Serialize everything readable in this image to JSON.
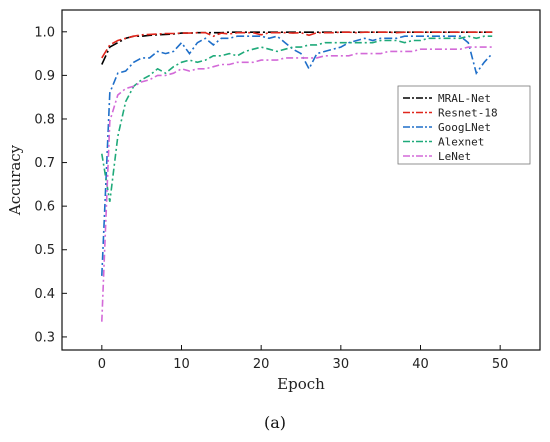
{
  "chart_data": {
    "type": "line",
    "xlabel": "Epoch",
    "ylabel": "Accuracy",
    "panel_label": "(a)",
    "xlim": [
      -5,
      55
    ],
    "ylim": [
      0.27,
      1.05
    ],
    "xticks": [
      0,
      10,
      20,
      30,
      40,
      50
    ],
    "yticks": [
      0.3,
      0.4,
      0.5,
      0.6,
      0.7,
      0.8,
      0.9,
      1.0
    ],
    "xtick_labels": [
      "0",
      "10",
      "20",
      "30",
      "40",
      "50"
    ],
    "ytick_labels": [
      "0.3",
      "0.4",
      "0.5",
      "0.6",
      "0.7",
      "0.8",
      "0.9",
      "1.0"
    ],
    "grid": false,
    "legend_position": "right",
    "x": [
      0,
      1,
      2,
      3,
      4,
      5,
      6,
      7,
      8,
      9,
      10,
      11,
      12,
      13,
      14,
      15,
      16,
      17,
      18,
      19,
      20,
      21,
      22,
      23,
      24,
      25,
      26,
      27,
      28,
      29,
      30,
      31,
      32,
      33,
      34,
      35,
      36,
      37,
      38,
      39,
      40,
      41,
      42,
      43,
      44,
      45,
      46,
      47,
      48,
      49
    ],
    "series": [
      {
        "name": "MRAL-Net",
        "color": "#000000",
        "values": [
          0.925,
          0.965,
          0.975,
          0.985,
          0.99,
          0.99,
          0.992,
          0.993,
          0.994,
          0.995,
          0.997,
          0.997,
          0.998,
          0.998,
          0.998,
          0.998,
          0.999,
          0.999,
          0.999,
          0.999,
          0.999,
          0.999,
          0.999,
          0.999,
          0.999,
          0.999,
          0.999,
          0.999,
          0.999,
          0.999,
          0.999,
          0.999,
          0.999,
          0.999,
          0.999,
          0.999,
          0.999,
          0.999,
          0.999,
          0.999,
          0.999,
          0.999,
          0.999,
          0.999,
          0.999,
          0.999,
          0.999,
          0.999,
          0.999,
          0.999
        ]
      },
      {
        "name": "Resnet-18",
        "color": "#e0261c",
        "values": [
          0.94,
          0.97,
          0.98,
          0.985,
          0.99,
          0.993,
          0.994,
          0.995,
          0.996,
          0.996,
          0.997,
          0.997,
          0.998,
          0.998,
          0.99,
          0.997,
          0.995,
          0.998,
          0.998,
          0.998,
          0.993,
          0.998,
          0.998,
          0.998,
          0.997,
          0.998,
          0.992,
          0.998,
          0.998,
          0.998,
          0.999,
          0.999,
          0.998,
          0.999,
          0.999,
          0.999,
          0.999,
          0.998,
          0.999,
          0.999,
          0.999,
          0.999,
          0.999,
          0.999,
          0.999,
          0.999,
          0.999,
          0.999,
          0.999,
          0.999
        ]
      },
      {
        "name": "GoogLNet",
        "color": "#1f6fc9",
        "values": [
          0.44,
          0.86,
          0.905,
          0.91,
          0.93,
          0.94,
          0.94,
          0.955,
          0.95,
          0.955,
          0.975,
          0.95,
          0.975,
          0.985,
          0.97,
          0.985,
          0.985,
          0.99,
          0.99,
          0.99,
          0.99,
          0.985,
          0.99,
          0.975,
          0.96,
          0.95,
          0.915,
          0.95,
          0.955,
          0.96,
          0.965,
          0.975,
          0.98,
          0.985,
          0.98,
          0.985,
          0.985,
          0.985,
          0.99,
          0.99,
          0.99,
          0.99,
          0.99,
          0.99,
          0.99,
          0.99,
          0.975,
          0.905,
          0.93,
          0.95
        ]
      },
      {
        "name": "Alexnet",
        "color": "#1faa7a",
        "values": [
          0.72,
          0.61,
          0.76,
          0.84,
          0.875,
          0.89,
          0.9,
          0.915,
          0.905,
          0.92,
          0.93,
          0.935,
          0.93,
          0.935,
          0.945,
          0.945,
          0.95,
          0.945,
          0.955,
          0.96,
          0.965,
          0.96,
          0.955,
          0.96,
          0.965,
          0.965,
          0.97,
          0.97,
          0.975,
          0.975,
          0.975,
          0.975,
          0.975,
          0.975,
          0.975,
          0.98,
          0.98,
          0.98,
          0.975,
          0.98,
          0.98,
          0.985,
          0.985,
          0.985,
          0.985,
          0.985,
          0.99,
          0.985,
          0.99,
          0.99
        ]
      },
      {
        "name": "LeNet",
        "color": "#d36ad8",
        "values": [
          0.335,
          0.795,
          0.855,
          0.87,
          0.875,
          0.885,
          0.89,
          0.9,
          0.9,
          0.905,
          0.915,
          0.91,
          0.915,
          0.915,
          0.92,
          0.925,
          0.925,
          0.93,
          0.93,
          0.93,
          0.935,
          0.935,
          0.935,
          0.94,
          0.94,
          0.94,
          0.94,
          0.94,
          0.945,
          0.945,
          0.945,
          0.945,
          0.95,
          0.95,
          0.95,
          0.95,
          0.955,
          0.955,
          0.955,
          0.955,
          0.96,
          0.96,
          0.96,
          0.96,
          0.96,
          0.96,
          0.965,
          0.965,
          0.965,
          0.965
        ]
      }
    ]
  }
}
